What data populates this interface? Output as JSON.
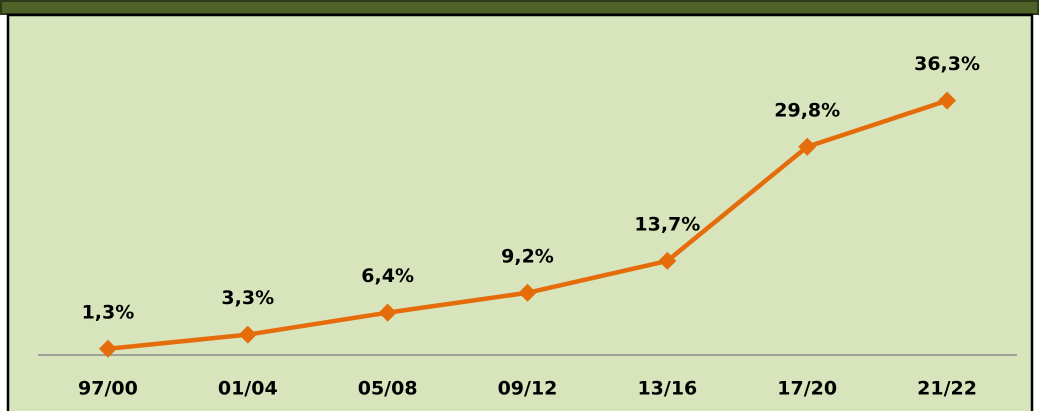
{
  "chart_data": {
    "type": "line",
    "categories": [
      "97/00",
      "01/04",
      "05/08",
      "09/12",
      "13/16",
      "17/20",
      "21/22"
    ],
    "values": [
      1.3,
      3.3,
      6.4,
      9.2,
      13.7,
      29.8,
      36.3
    ],
    "value_labels": [
      "1,3%",
      "3,3%",
      "6,4%",
      "9,2%",
      "13,7%",
      "29,8%",
      "36,3%"
    ],
    "color": "#e46c0a",
    "ylim": [
      0,
      45
    ]
  }
}
